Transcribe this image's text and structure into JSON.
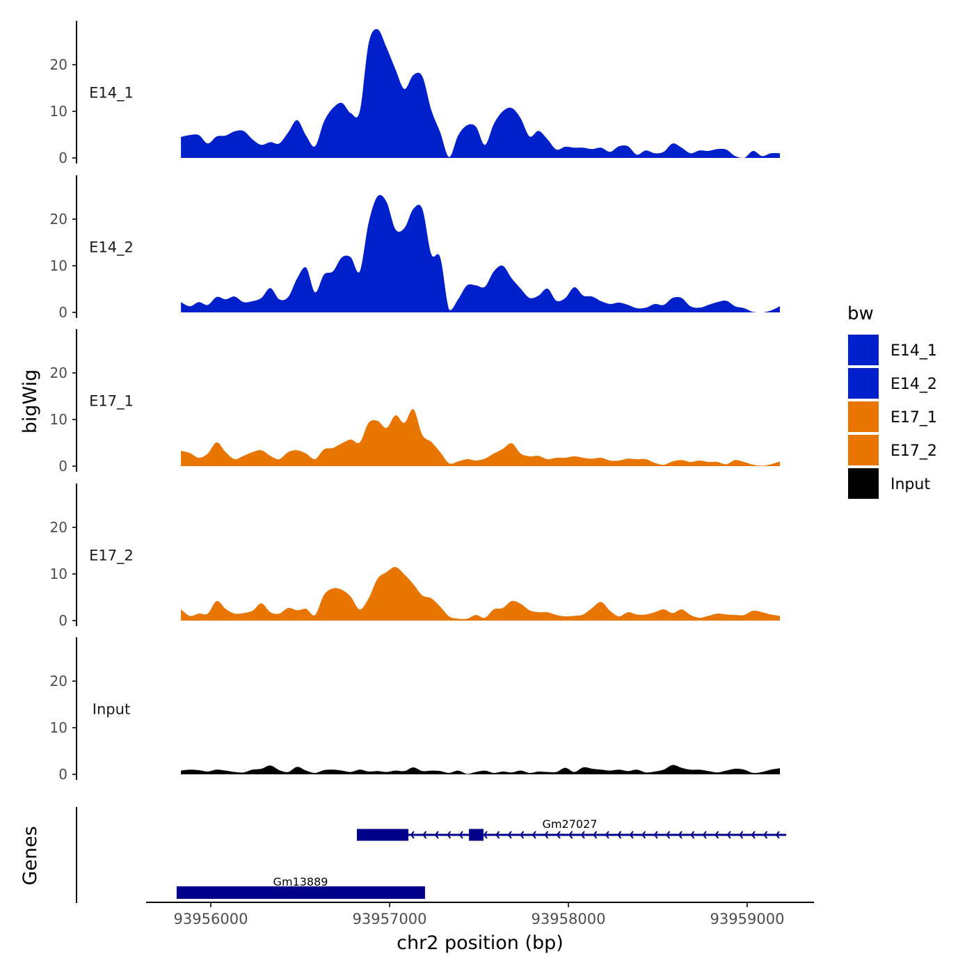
{
  "chart_data": {
    "type": "area",
    "title": "",
    "xlabel": "chr2 position (bp)",
    "ylabel": "bigWig",
    "gene_track_label": "Genes",
    "xlim": [
      93955638,
      93959374
    ],
    "x_ticks": [
      93956000,
      93957000,
      93958000,
      93959000
    ],
    "x_tick_labels": [
      "93956000",
      "93957000",
      "93958000",
      "93959000"
    ],
    "ylim": [
      0,
      29.4
    ],
    "y_ticks": [
      0,
      10,
      20
    ],
    "y_tick_labels": [
      "0",
      "10",
      "20"
    ],
    "legend": {
      "title": "bw",
      "placement": "right",
      "entries": [
        "E14_1",
        "E14_2",
        "E17_1",
        "E17_2",
        "Input"
      ]
    },
    "sampling": {
      "start_bp": 93955833,
      "step_bp": 50
    },
    "series": [
      {
        "name": "E14_1",
        "color": "#0020CC",
        "values": [
          4.5,
          4.9,
          4.9,
          3.1,
          4.6,
          4.8,
          5.7,
          5.8,
          4.0,
          2.8,
          3.4,
          3.1,
          5.5,
          8.1,
          4.8,
          2.5,
          7.8,
          10.7,
          11.8,
          9.6,
          10,
          24.6,
          27.6,
          23.7,
          19,
          14.8,
          17.8,
          17.5,
          10.3,
          5.5,
          0.2,
          4.8,
          7,
          6.7,
          2.8,
          7.3,
          10,
          10.7,
          8.5,
          4.6,
          5.8,
          4,
          1.8,
          2.4,
          2.2,
          2.2,
          1.9,
          2.2,
          1.3,
          2.5,
          2.5,
          0.7,
          1.6,
          1,
          1.3,
          3.1,
          2.2,
          1,
          1.6,
          1.5,
          1.9,
          1.8,
          0.4,
          0,
          1.5,
          0.4,
          1,
          1
        ]
      },
      {
        "name": "E14_2",
        "color": "#0020CC",
        "values": [
          2.2,
          1.3,
          2.2,
          1.6,
          3.3,
          2.8,
          3.4,
          2.2,
          2.4,
          3.1,
          5.2,
          2.8,
          3.3,
          7.3,
          9.6,
          4.3,
          8.1,
          8.8,
          11.8,
          11.8,
          8.8,
          19.3,
          24.9,
          23.7,
          17.8,
          18.1,
          22.2,
          22.2,
          12.5,
          11.8,
          0.6,
          2.8,
          5.8,
          5.8,
          5.5,
          8.8,
          10,
          7.3,
          5.1,
          3.1,
          3.6,
          5.1,
          2.5,
          3.1,
          5.4,
          3.6,
          3.4,
          2.4,
          1.8,
          2.1,
          1.6,
          0.9,
          1,
          1.8,
          1.6,
          3.1,
          3.1,
          1.3,
          1,
          1.6,
          2.2,
          2.5,
          1.3,
          0.9,
          0.1,
          0,
          0.4,
          1.3
        ]
      },
      {
        "name": "E17_1",
        "color": "#E87500",
        "values": [
          3.3,
          2.8,
          1.8,
          2.7,
          5.1,
          3,
          1.5,
          2.2,
          3,
          3.4,
          2.2,
          1.5,
          3,
          3.4,
          2.7,
          1.5,
          3.6,
          3.9,
          4.9,
          5.7,
          5.1,
          9.3,
          9.7,
          8.2,
          10.9,
          9.3,
          12.2,
          6.7,
          5.2,
          3,
          0.6,
          1,
          1.5,
          1.2,
          1.6,
          2.7,
          3.7,
          4.9,
          2.7,
          2.1,
          2.2,
          1.5,
          1.8,
          1.8,
          2.1,
          1.8,
          1.6,
          1.8,
          1.2,
          1.2,
          1.6,
          1.5,
          1.5,
          0.7,
          0.3,
          1,
          1.3,
          0.9,
          1.2,
          0.9,
          0.9,
          0.4,
          1.3,
          0.9,
          0.3,
          0.1,
          0.4,
          1
        ]
      },
      {
        "name": "E17_2",
        "color": "#E87500",
        "values": [
          2.4,
          1,
          1.5,
          1.5,
          4.2,
          2.5,
          1.5,
          1.6,
          2.1,
          3.7,
          1.8,
          1.5,
          2.7,
          2.2,
          2.5,
          1.2,
          5.5,
          6.9,
          6.6,
          5.1,
          2.4,
          4.8,
          9,
          10.4,
          11.5,
          9.9,
          7.8,
          5.4,
          4.8,
          3,
          0.9,
          0.4,
          0.4,
          1.2,
          0.6,
          2.4,
          2.7,
          4.2,
          3.6,
          2.2,
          1.8,
          1.8,
          1.2,
          0.9,
          1,
          1.3,
          2.7,
          4,
          2.1,
          0.9,
          1.8,
          1.3,
          1.3,
          1.8,
          2.4,
          1.6,
          2.4,
          1.2,
          0.6,
          1,
          1.5,
          1.3,
          1.2,
          1.2,
          2.1,
          1.8,
          1.3,
          1
        ]
      },
      {
        "name": "Input",
        "color": "#000000",
        "values": [
          0.8,
          1,
          0.9,
          0.6,
          1,
          0.8,
          0.5,
          0.4,
          1,
          1.2,
          1.9,
          0.9,
          0.5,
          1.6,
          0.8,
          0.3,
          0.9,
          1,
          0.8,
          0.5,
          1,
          0.6,
          0.7,
          0.5,
          0.8,
          0.7,
          1.5,
          0.7,
          0.8,
          0.7,
          0.3,
          0.8,
          0.1,
          0.5,
          0.8,
          0.3,
          0.6,
          0.4,
          0.8,
          0.3,
          0.6,
          0.5,
          0.5,
          1.4,
          0.5,
          1.5,
          1.2,
          1,
          0.8,
          1,
          0.7,
          1,
          0.4,
          0.6,
          1,
          2,
          1.4,
          1,
          1,
          0.7,
          0.4,
          0.8,
          1.2,
          1,
          0.3,
          0.5,
          1,
          1.3
        ]
      }
    ],
    "genes": [
      {
        "name": "Gm27027",
        "strand": "-",
        "start": 93956817,
        "end": 93959218,
        "exons": [
          [
            93956817,
            93957105
          ],
          [
            93957444,
            93957525
          ]
        ],
        "color": "#00008B"
      },
      {
        "name": "Gm13889",
        "strand": "-",
        "start": 93955809,
        "end": 93957198,
        "exons": [
          [
            93955809,
            93957198
          ]
        ],
        "color": "#00008B"
      }
    ]
  }
}
